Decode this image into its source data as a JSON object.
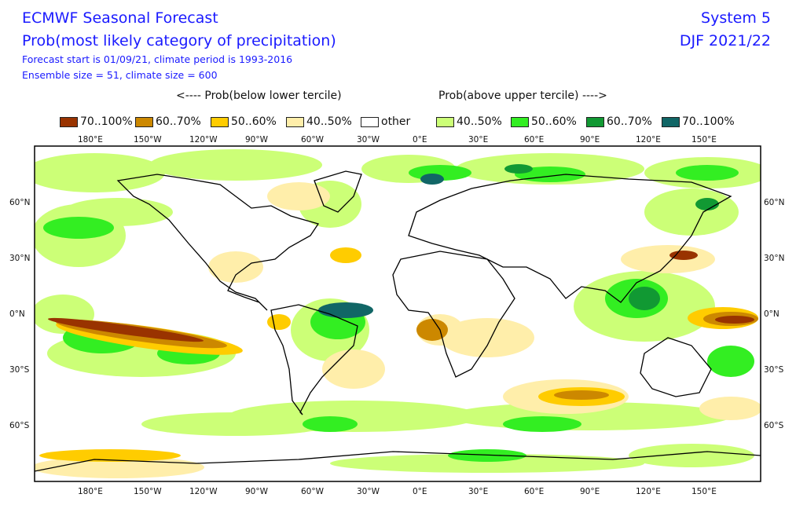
{
  "header": {
    "title_line1": "ECMWF Seasonal Forecast",
    "title_line2": "Prob(most likely category of precipitation)",
    "info_line1": "Forecast start is 01/09/21, climate period is 1993-2016",
    "info_line2": "Ensemble size = 51, climate size = 600",
    "system": "System 5",
    "season": "DJF 2021/22"
  },
  "subtitles": {
    "below": "<---- Prob(below lower tercile)",
    "above": "Prob(above upper tercile) ---->"
  },
  "legend": [
    {
      "label": "70..100%",
      "color": "#993300"
    },
    {
      "label": "60..70%",
      "color": "#cc8800"
    },
    {
      "label": "50..60%",
      "color": "#ffcc00"
    },
    {
      "label": "40..50%",
      "color": "#ffeeaa"
    },
    {
      "label": "other",
      "color": "#ffffff"
    },
    {
      "label": "40..50%",
      "color": "#ccff77"
    },
    {
      "label": "50..60%",
      "color": "#33ee22"
    },
    {
      "label": "60..70%",
      "color": "#119933"
    },
    {
      "label": "70..100%",
      "color": "#116666"
    }
  ],
  "axes": {
    "lon_labels": [
      "180°E",
      "150°W",
      "120°W",
      "90°W",
      "60°W",
      "30°W",
      "0°E",
      "30°E",
      "60°E",
      "90°E",
      "120°E",
      "150°E"
    ],
    "lat_labels": [
      "60°N",
      "30°N",
      "0°N",
      "30°S",
      "60°S"
    ]
  }
}
